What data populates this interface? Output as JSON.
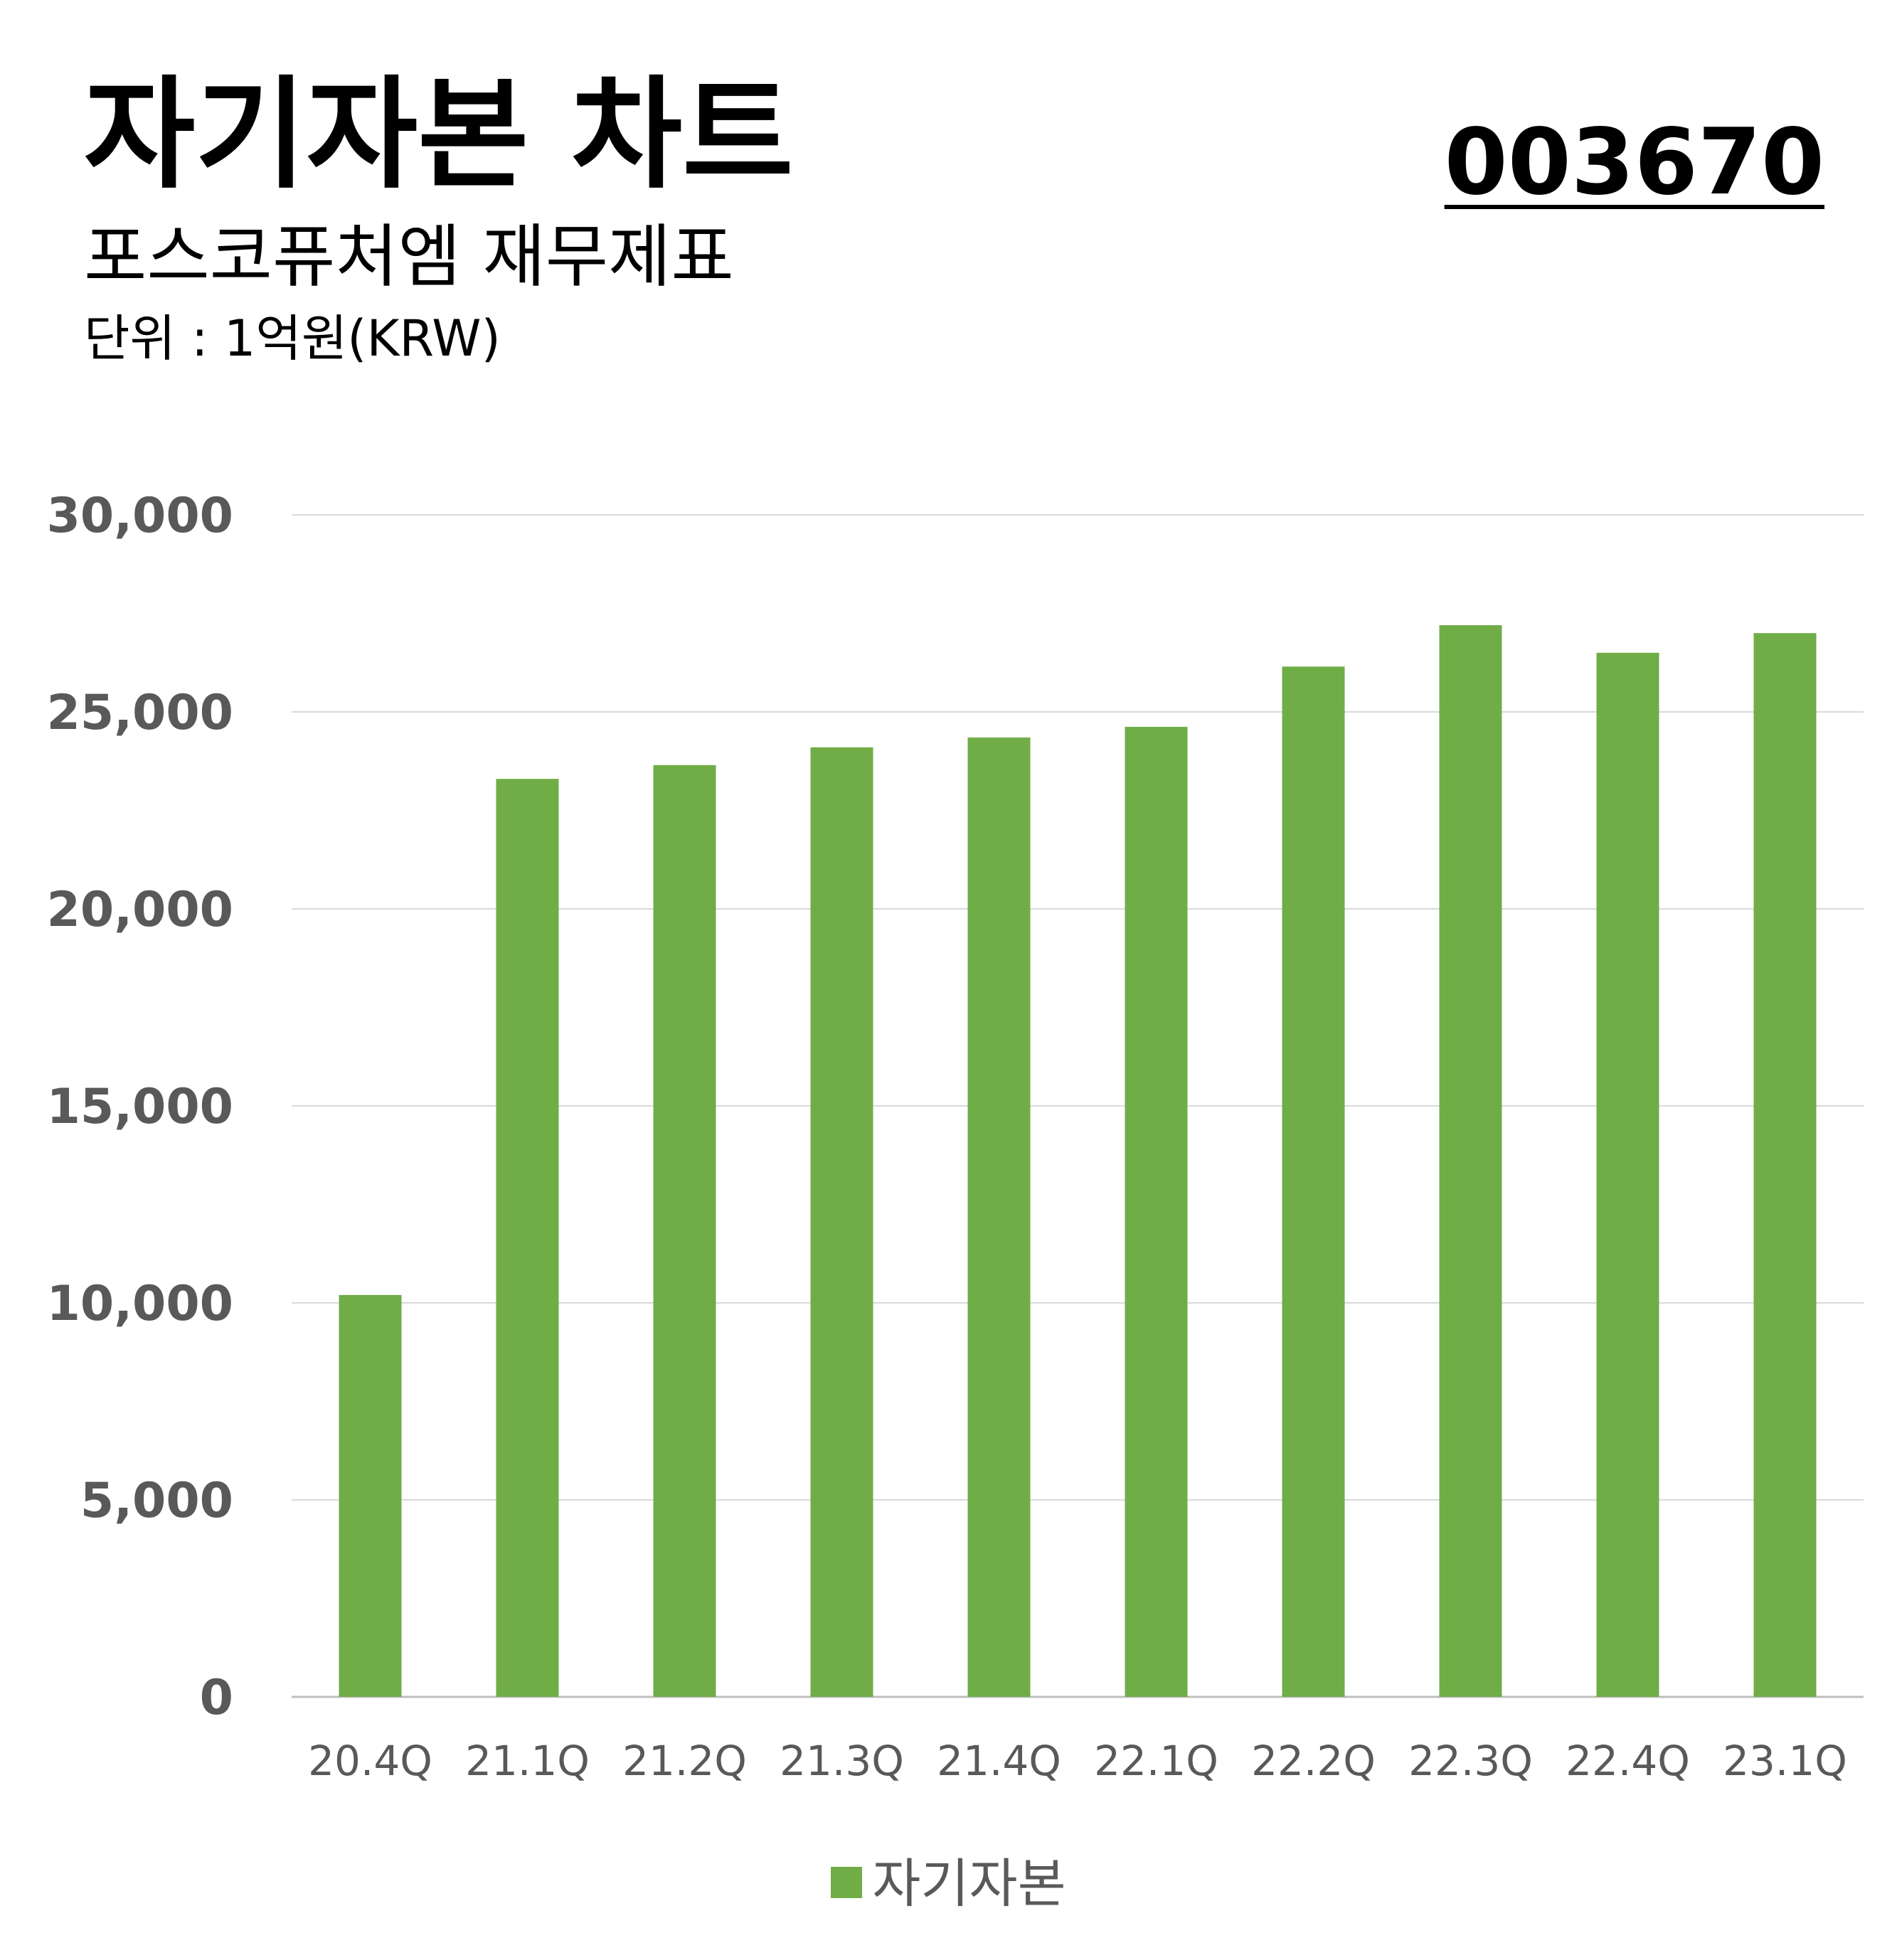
{
  "header": {
    "title": "자기자본 차트",
    "code": "003670",
    "subtitle": "포스코퓨처엠 재무제표",
    "unit": "단위 : 1억원(KRW)"
  },
  "colors": {
    "bar": "#70AD47",
    "grid": "#d9d9d9",
    "tick": "#595959"
  },
  "chart_data": {
    "type": "bar",
    "categories": [
      "20.4Q",
      "21.1Q",
      "21.2Q",
      "21.3Q",
      "21.4Q",
      "22.1Q",
      "22.2Q",
      "22.3Q",
      "22.4Q",
      "23.1Q"
    ],
    "series": [
      {
        "name": "자기자본",
        "values": [
          10200,
          23300,
          23650,
          24100,
          24350,
          24620,
          26150,
          27200,
          26500,
          27000
        ]
      }
    ],
    "yticks": [
      "0",
      "5,000",
      "10,000",
      "15,000",
      "20,000",
      "25,000",
      "30,000"
    ],
    "ylim": [
      0,
      30000
    ],
    "grid": true,
    "legend": "bottom"
  }
}
